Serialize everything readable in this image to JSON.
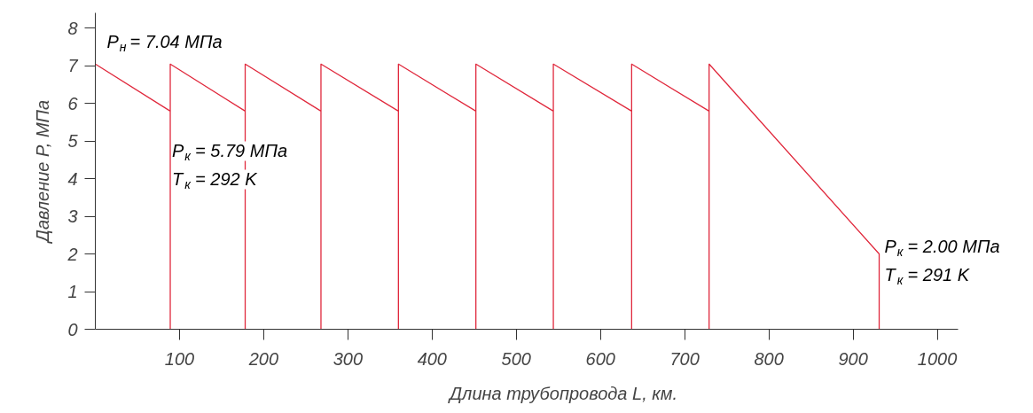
{
  "chart_data": {
    "type": "line",
    "xlabel": "Длина трубопровода L, км.",
    "ylabel": "Давление P, МПа",
    "xlim": [
      0,
      1025
    ],
    "ylim": [
      0,
      8.4
    ],
    "xticks": [
      100,
      200,
      300,
      400,
      500,
      600,
      700,
      800,
      900,
      1000
    ],
    "yticks": [
      {
        "value": 0,
        "label": "0"
      },
      1,
      2,
      3,
      4,
      5,
      6,
      7,
      8
    ],
    "series": [
      {
        "color": "#e0283c",
        "x": [
          0,
          89,
          89,
          89,
          178,
          178,
          178,
          268,
          268,
          268,
          360,
          360,
          360,
          452,
          452,
          452,
          544,
          544,
          544,
          637,
          637,
          637,
          729,
          729,
          729,
          931,
          931
        ],
        "values": [
          7.04,
          5.79,
          0,
          7.04,
          5.79,
          0,
          7.04,
          5.79,
          0,
          7.04,
          5.79,
          0,
          7.04,
          5.79,
          0,
          7.04,
          5.79,
          0,
          7.04,
          5.79,
          0,
          7.04,
          5.79,
          0,
          7.04,
          2.0,
          0
        ]
      }
    ],
    "annotations": [
      {
        "text": "P$_{н}$ = 7.04 МПа",
        "x": 0,
        "y": 7.04
      },
      {
        "text": "P$_{к}$ = 5.79 МПа\nT$_{к}$ = 292 K",
        "x": 89,
        "y": 5.79
      },
      {
        "text": "P$_{к}$ = 2.00 МПа\nT$_{к}$ = 291 K",
        "x": 931,
        "y": 2.0
      }
    ]
  }
}
